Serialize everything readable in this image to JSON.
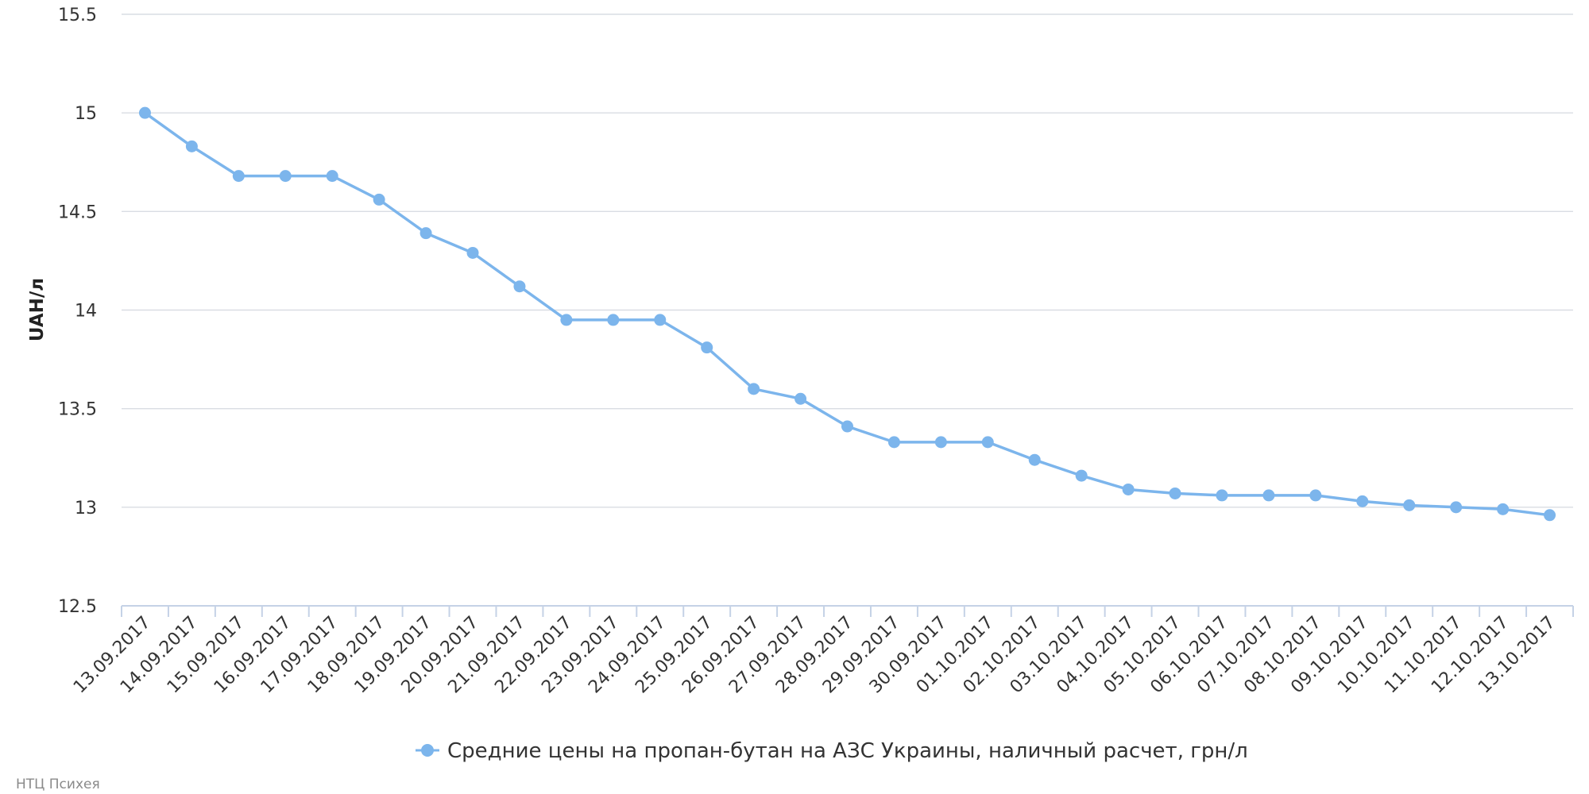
{
  "chart_data": {
    "type": "line",
    "title": "",
    "xlabel": "",
    "ylabel": "UAH/л",
    "ylim": [
      12.5,
      15.5
    ],
    "yticks": [
      "12.5",
      "13",
      "13.5",
      "14",
      "14.5",
      "15",
      "15.5"
    ],
    "grid": true,
    "legend_position": "bottom-center",
    "categories": [
      "13.09.2017",
      "14.09.2017",
      "15.09.2017",
      "16.09.2017",
      "17.09.2017",
      "18.09.2017",
      "19.09.2017",
      "20.09.2017",
      "21.09.2017",
      "22.09.2017",
      "23.09.2017",
      "24.09.2017",
      "25.09.2017",
      "26.09.2017",
      "27.09.2017",
      "28.09.2017",
      "29.09.2017",
      "30.09.2017",
      "01.10.2017",
      "02.10.2017",
      "03.10.2017",
      "04.10.2017",
      "05.10.2017",
      "06.10.2017",
      "07.10.2017",
      "08.10.2017",
      "09.10.2017",
      "10.10.2017",
      "11.10.2017",
      "12.10.2017",
      "13.10.2017"
    ],
    "series": [
      {
        "name": "Средние цены на пропан-бутан на АЗС Украины, наличный расчет, грн/л",
        "color": "#7cb5ec",
        "values": [
          15.0,
          14.83,
          14.68,
          14.68,
          14.68,
          14.56,
          14.39,
          14.29,
          14.12,
          13.95,
          13.95,
          13.95,
          13.81,
          13.6,
          13.55,
          13.41,
          13.33,
          13.33,
          13.33,
          13.24,
          13.16,
          13.09,
          13.07,
          13.06,
          13.06,
          13.06,
          13.03,
          13.01,
          13.0,
          12.99,
          12.96
        ]
      }
    ]
  },
  "credit": "НТЦ Психея",
  "colors": {
    "series": "#7cb5ec",
    "grid": "#d9dde3",
    "axis": "#c5d2e6"
  }
}
